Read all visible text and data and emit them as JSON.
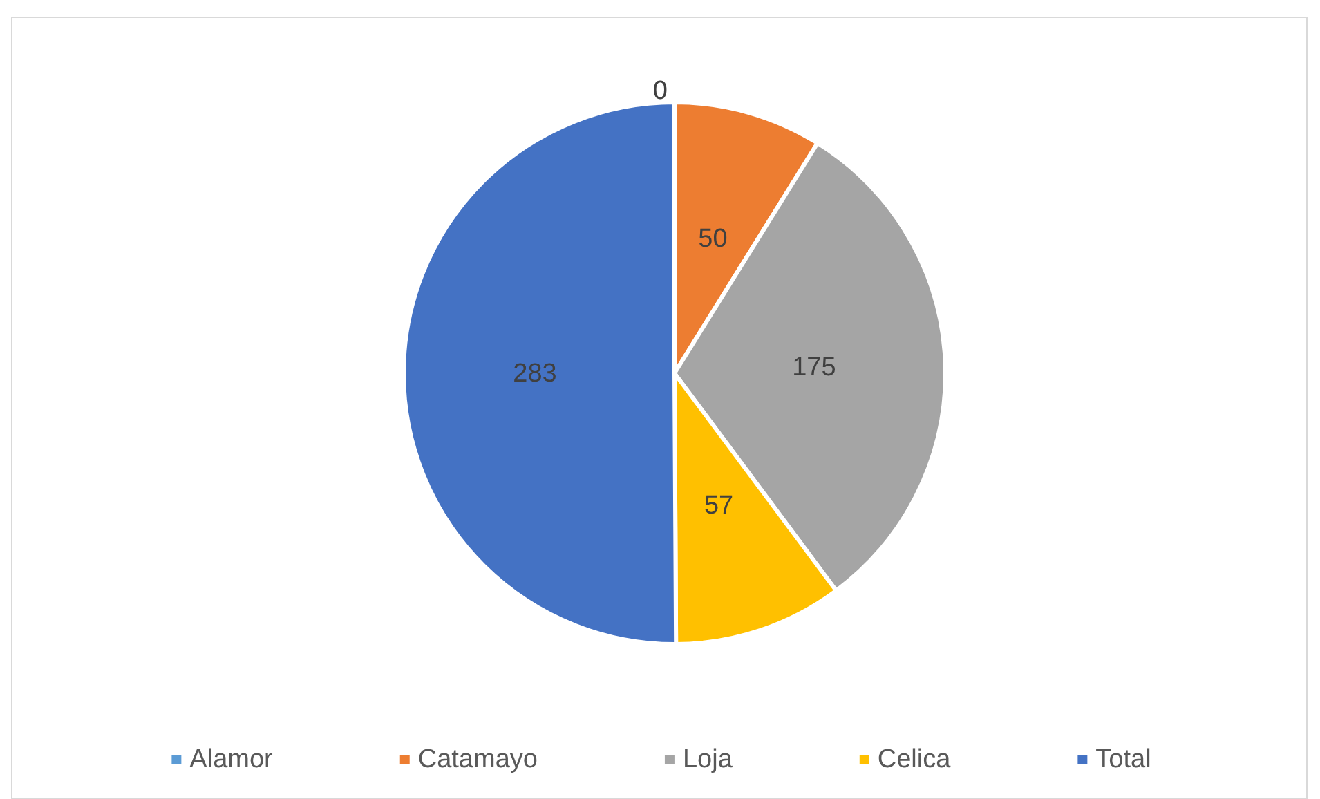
{
  "chart_data": {
    "type": "pie",
    "categories": [
      "Alamor",
      "Catamayo",
      "Loja",
      "Celica",
      "Total"
    ],
    "values": [
      0,
      50,
      175,
      57,
      283
    ],
    "value_labels": [
      "0",
      "50",
      "175",
      "57",
      "283"
    ],
    "colors": [
      "#5b9bd5",
      "#ed7d31",
      "#a5a5a5",
      "#ffc000",
      "#4472c4"
    ],
    "legend": "bottom"
  }
}
